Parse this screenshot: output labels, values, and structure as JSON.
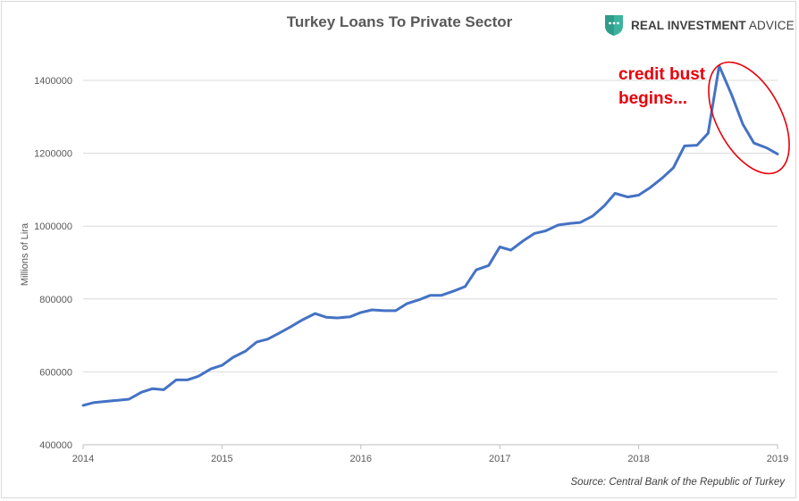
{
  "header": {
    "title": "Turkey Loans To Private Sector",
    "brand_strong": "REAL INVESTMENT",
    "brand_light": " ADVICE"
  },
  "annotation": {
    "line1": "credit bust",
    "line2": "begins...",
    "color": "#e8000b"
  },
  "source": "Source: Central Bank of the Republic of Turkey",
  "colors": {
    "line": "#4472c4",
    "grid": "#d9d9d9",
    "axis_text": "#595959",
    "accent": "#e8000b",
    "brand": "#3db39e"
  },
  "chart_data": {
    "type": "line",
    "title": "Turkey Loans To Private Sector",
    "xlabel": "",
    "ylabel": "Millions of Lira",
    "ylim": [
      400000,
      1400000
    ],
    "xlim": [
      2014.0,
      2019.0
    ],
    "yticks": [
      "400000",
      "600000",
      "800000",
      "1000000",
      "1200000",
      "1400000"
    ],
    "xticks": [
      "2014",
      "2015",
      "2016",
      "2017",
      "2018",
      "2019"
    ],
    "grid": "horizontal",
    "legend": "none",
    "series": [
      {
        "x": [
          2014.0,
          2014.08,
          2014.17,
          2014.25,
          2014.33,
          2014.42,
          2014.5,
          2014.58,
          2014.67,
          2014.75,
          2014.83,
          2014.92,
          2015.0,
          2015.08,
          2015.17,
          2015.25,
          2015.33,
          2015.42,
          2015.5,
          2015.58,
          2015.67,
          2015.75,
          2015.83,
          2015.92,
          2016.0,
          2016.08,
          2016.17,
          2016.25,
          2016.33,
          2016.42,
          2016.5,
          2016.58,
          2016.67,
          2016.75,
          2016.83,
          2016.92,
          2017.0,
          2017.08,
          2017.17,
          2017.25,
          2017.33,
          2017.42,
          2017.5,
          2017.58,
          2017.67,
          2017.75,
          2017.83,
          2017.92,
          2018.0,
          2018.08,
          2018.17,
          2018.25,
          2018.33,
          2018.42,
          2018.5,
          2018.58,
          2018.67,
          2018.75,
          2018.83,
          2018.92,
          2019.0
        ],
        "values": [
          508000,
          516000,
          519000,
          522000,
          525000,
          544000,
          554000,
          551000,
          578000,
          578000,
          588000,
          608000,
          618000,
          640000,
          657000,
          682000,
          690000,
          708000,
          725000,
          743000,
          760000,
          750000,
          748000,
          751000,
          763000,
          770000,
          768000,
          768000,
          787000,
          798000,
          810000,
          810000,
          822000,
          834000,
          880000,
          892000,
          943000,
          934000,
          960000,
          980000,
          987000,
          1003000,
          1007000,
          1010000,
          1028000,
          1055000,
          1090000,
          1080000,
          1085000,
          1105000,
          1132000,
          1160000,
          1220000,
          1222000,
          1255000,
          1440000,
          1360000,
          1280000,
          1228000,
          1215000,
          1198000
        ]
      }
    ]
  }
}
